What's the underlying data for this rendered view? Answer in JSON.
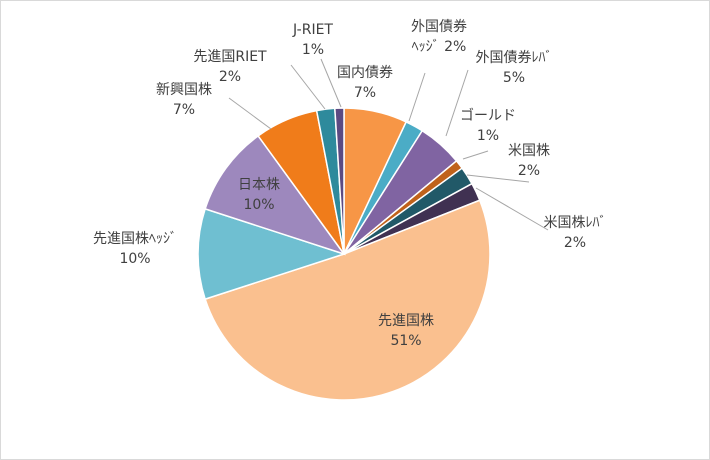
{
  "chart_data": {
    "type": "pie",
    "start_angle_deg": 0,
    "direction": "clockwise",
    "slices": [
      {
        "name": "国内債券",
        "value": 7,
        "label_lines": [
          "国内債券",
          "7%"
        ],
        "color": "#f79646"
      },
      {
        "name": "外国債券ヘッジ",
        "value": 2,
        "label_lines": [
          "外国債券",
          "ﾍｯｼﾞ 2%"
        ],
        "color": "#4bacc6"
      },
      {
        "name": "外国債券レバ",
        "value": 5,
        "label_lines": [
          "外国債券ﾚﾊﾞ",
          "5%"
        ],
        "color": "#8064a2"
      },
      {
        "name": "ゴールド",
        "value": 1,
        "label_lines": [
          "ゴールド",
          "1%"
        ],
        "color": "#c0621b"
      },
      {
        "name": "米国株",
        "value": 2,
        "label_lines": [
          "米国株",
          "2%"
        ],
        "color": "#215968"
      },
      {
        "name": "米国株レバ",
        "value": 2,
        "label_lines": [
          "米国株ﾚﾊﾞ",
          "2%"
        ],
        "color": "#403152"
      },
      {
        "name": "先進国株",
        "value": 51,
        "label_lines": [
          "先進国株",
          "51%"
        ],
        "color": "#fac08f"
      },
      {
        "name": "先進国株ヘッジ",
        "value": 10,
        "label_lines": [
          "先進国株ﾍｯｼﾞ",
          "10%"
        ],
        "color": "#6fbfd1"
      },
      {
        "name": "日本株",
        "value": 10,
        "label_lines": [
          "日本株",
          "10%"
        ],
        "color": "#9d88bd"
      },
      {
        "name": "新興国株",
        "value": 7,
        "label_lines": [
          "新興国株",
          "7%"
        ],
        "color": "#f07c1a"
      },
      {
        "name": "先進国RIET",
        "value": 2,
        "label_lines": [
          "先進国RIET",
          "2%"
        ],
        "color": "#2e8a9c"
      },
      {
        "name": "J-RIET",
        "value": 1,
        "label_lines": [
          "J-RIET",
          "1%"
        ],
        "color": "#5c4a82"
      }
    ]
  }
}
